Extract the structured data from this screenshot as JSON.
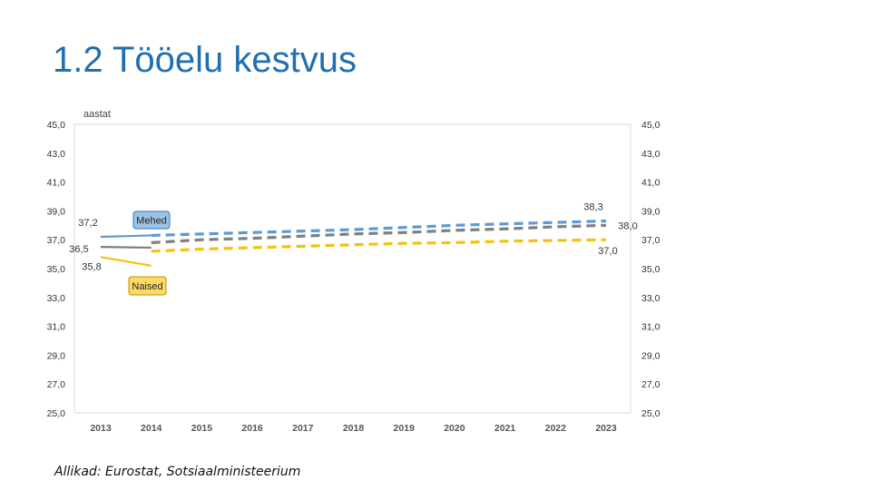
{
  "slide": {
    "title": "1.2 Tööelu kestvus",
    "source": "Allikad: Eurostat, Sotsiaalministeerium"
  },
  "chart_data": {
    "type": "line",
    "yunit_label": "aastat",
    "ylim": [
      25,
      45
    ],
    "ytick_values": [
      25,
      27,
      29,
      31,
      33,
      35,
      37,
      39,
      41,
      43,
      45
    ],
    "ytick_labels": [
      "25,0",
      "27,0",
      "29,0",
      "31,0",
      "33,0",
      "35,0",
      "37,0",
      "39,0",
      "41,0",
      "43,0",
      "45,0"
    ],
    "categories": [
      "2013",
      "2014",
      "2015",
      "2016",
      "2017",
      "2018",
      "2019",
      "2020",
      "2021",
      "2022",
      "2023"
    ],
    "grid": false,
    "series": [
      {
        "name": "Mehed",
        "color": "#5b9bd5",
        "actual": [
          37.2,
          37.3,
          null,
          null,
          null,
          null,
          null,
          null,
          null,
          null,
          null
        ],
        "projected": [
          null,
          37.3,
          37.4,
          37.5,
          37.6,
          37.7,
          37.85,
          38.0,
          38.1,
          38.2,
          38.3
        ],
        "labels": [
          {
            "index": 0,
            "text": "37,2"
          },
          {
            "index": 10,
            "text": "38,3"
          }
        ]
      },
      {
        "name": "",
        "color": "#7f7f7f",
        "actual": [
          36.5,
          36.45,
          null,
          null,
          null,
          null,
          null,
          null,
          null,
          null,
          null
        ],
        "projected": [
          null,
          36.8,
          37.0,
          37.1,
          37.25,
          37.4,
          37.5,
          37.65,
          37.75,
          37.9,
          38.0
        ],
        "labels": [
          {
            "index": 0,
            "text": "36,5"
          },
          {
            "index": 10,
            "text": "38,0"
          }
        ]
      },
      {
        "name": "Naised",
        "color": "#f4c20d",
        "actual": [
          35.8,
          35.2,
          null,
          null,
          null,
          null,
          null,
          null,
          null,
          null,
          null
        ],
        "projected": [
          null,
          36.2,
          36.35,
          36.45,
          36.55,
          36.65,
          36.75,
          36.8,
          36.9,
          36.95,
          37.0
        ],
        "labels": [
          {
            "index": 0,
            "text": "35,8"
          },
          {
            "index": 10,
            "text": "37,0"
          }
        ]
      }
    ],
    "legend_badges": [
      {
        "text": "Mehed",
        "fill": "#9dc3e6",
        "stroke": "#2e75b6"
      },
      {
        "text": "Naised",
        "fill": "#ffd966",
        "stroke": "#bf9000"
      }
    ]
  }
}
